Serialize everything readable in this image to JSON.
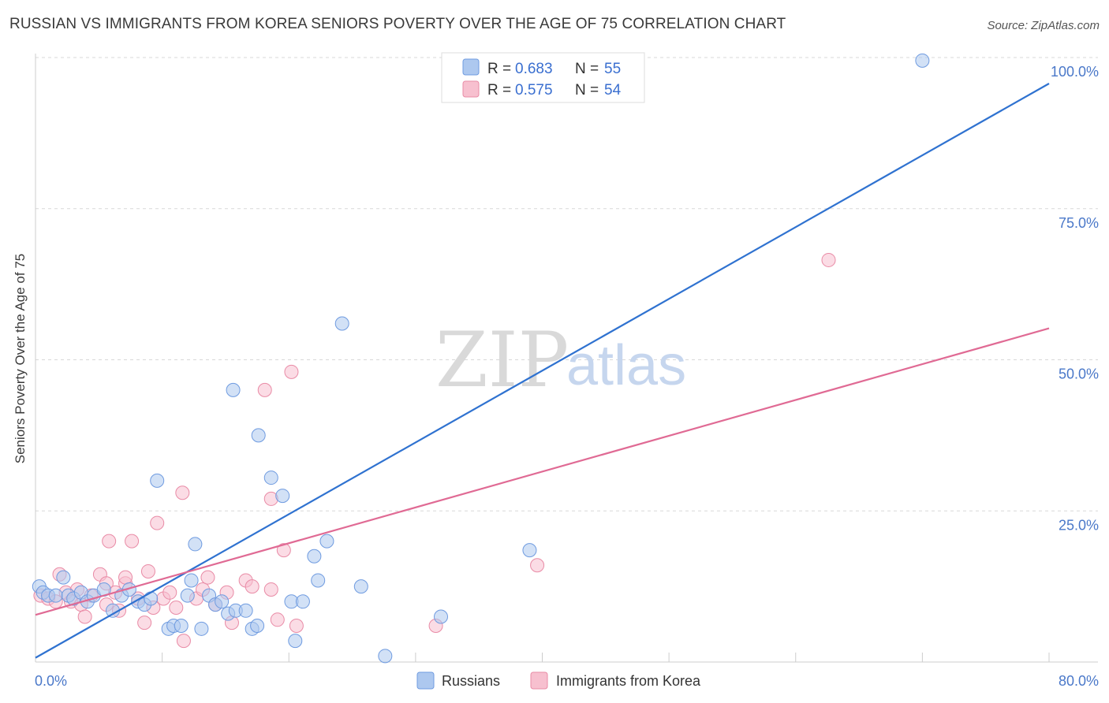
{
  "title": "RUSSIAN VS IMMIGRANTS FROM KOREA SENIORS POVERTY OVER THE AGE OF 75 CORRELATION CHART",
  "source": "Source: ZipAtlas.com",
  "watermark": {
    "zip": "ZIP",
    "atlas": "atlas"
  },
  "legend": {
    "r_label": "R =",
    "n_label": "N =",
    "series": [
      {
        "name": "Russians",
        "r": "0.683",
        "n": "55",
        "fill": "#adc8ef",
        "stroke": "#6f9be0"
      },
      {
        "name": "Immigrants from Korea",
        "r": "0.575",
        "n": "54",
        "fill": "#f7c0cf",
        "stroke": "#e98ba6"
      }
    ]
  },
  "colors": {
    "blue_line": "#2f72d0",
    "pink_line": "#e06a94",
    "grid": "#d8d8d8",
    "tick_label": "#4a78c9"
  },
  "chart_data": {
    "type": "scatter",
    "xlabel": "",
    "ylabel": "Seniors Poverty Over the Age of 75",
    "xlim": [
      0,
      80
    ],
    "ylim": [
      0,
      102
    ],
    "x_tick_labels": [
      "0.0%",
      "80.0%"
    ],
    "y_ticks": [
      25,
      50,
      75,
      100
    ],
    "y_tick_labels": [
      "25.0%",
      "50.0%",
      "75.0%",
      "100.0%"
    ],
    "series": [
      {
        "name": "Russians",
        "trend": {
          "x": [
            0,
            80
          ],
          "y": [
            0.7,
            95.7
          ]
        },
        "points": [
          [
            0.3,
            12.5
          ],
          [
            0.6,
            11.5
          ],
          [
            1.0,
            11.0
          ],
          [
            1.6,
            11.0
          ],
          [
            2.2,
            14.0
          ],
          [
            2.6,
            11.0
          ],
          [
            3.0,
            10.5
          ],
          [
            3.6,
            11.5
          ],
          [
            4.1,
            10.0
          ],
          [
            4.6,
            11.0
          ],
          [
            5.4,
            12.0
          ],
          [
            6.1,
            8.5
          ],
          [
            6.8,
            11.0
          ],
          [
            7.4,
            12.0
          ],
          [
            8.1,
            10.0
          ],
          [
            8.6,
            9.5
          ],
          [
            9.1,
            10.5
          ],
          [
            9.6,
            30.0
          ],
          [
            10.5,
            5.5
          ],
          [
            10.9,
            6.0
          ],
          [
            11.5,
            6.0
          ],
          [
            12.0,
            11.0
          ],
          [
            12.3,
            13.5
          ],
          [
            12.6,
            19.5
          ],
          [
            13.1,
            5.5
          ],
          [
            13.7,
            11.0
          ],
          [
            14.2,
            9.5
          ],
          [
            14.7,
            10.0
          ],
          [
            15.2,
            8.0
          ],
          [
            15.6,
            45.0
          ],
          [
            15.8,
            8.5
          ],
          [
            16.6,
            8.5
          ],
          [
            17.1,
            5.5
          ],
          [
            17.5,
            6.0
          ],
          [
            17.6,
            37.5
          ],
          [
            18.6,
            30.5
          ],
          [
            19.5,
            27.5
          ],
          [
            20.2,
            10.0
          ],
          [
            20.5,
            3.5
          ],
          [
            21.1,
            10.0
          ],
          [
            22.0,
            17.5
          ],
          [
            22.3,
            13.5
          ],
          [
            23.0,
            20.0
          ],
          [
            24.2,
            56.0
          ],
          [
            25.7,
            12.5
          ],
          [
            27.6,
            1.0
          ],
          [
            32.0,
            7.5
          ],
          [
            39.0,
            18.5
          ],
          [
            70.0,
            99.5
          ]
        ]
      },
      {
        "name": "Immigrants from Korea",
        "trend": {
          "x": [
            0,
            80
          ],
          "y": [
            7.8,
            55.2
          ]
        },
        "points": [
          [
            0.4,
            11.0
          ],
          [
            1.0,
            10.5
          ],
          [
            1.6,
            10.0
          ],
          [
            1.9,
            14.5
          ],
          [
            2.4,
            11.5
          ],
          [
            2.8,
            10.0
          ],
          [
            3.3,
            12.0
          ],
          [
            3.6,
            9.5
          ],
          [
            3.9,
            7.5
          ],
          [
            4.4,
            11.0
          ],
          [
            5.1,
            14.5
          ],
          [
            5.6,
            9.5
          ],
          [
            5.6,
            13.0
          ],
          [
            5.8,
            20.0
          ],
          [
            6.3,
            11.5
          ],
          [
            6.6,
            8.5
          ],
          [
            7.1,
            13.0
          ],
          [
            7.1,
            14.0
          ],
          [
            7.6,
            20.0
          ],
          [
            8.1,
            10.5
          ],
          [
            8.6,
            6.5
          ],
          [
            8.9,
            15.0
          ],
          [
            9.3,
            9.0
          ],
          [
            9.6,
            23.0
          ],
          [
            10.1,
            10.5
          ],
          [
            10.6,
            11.5
          ],
          [
            11.1,
            9.0
          ],
          [
            11.6,
            28.0
          ],
          [
            11.7,
            3.5
          ],
          [
            12.7,
            10.5
          ],
          [
            13.2,
            12.0
          ],
          [
            13.6,
            14.0
          ],
          [
            14.2,
            9.5
          ],
          [
            15.1,
            11.5
          ],
          [
            15.5,
            6.5
          ],
          [
            16.6,
            13.5
          ],
          [
            17.1,
            12.5
          ],
          [
            18.1,
            45.0
          ],
          [
            18.6,
            27.0
          ],
          [
            18.6,
            12.0
          ],
          [
            19.1,
            7.0
          ],
          [
            19.6,
            18.5
          ],
          [
            20.2,
            48.0
          ],
          [
            20.6,
            6.0
          ],
          [
            31.6,
            6.0
          ],
          [
            39.6,
            16.0
          ],
          [
            62.6,
            66.5
          ]
        ]
      }
    ]
  }
}
